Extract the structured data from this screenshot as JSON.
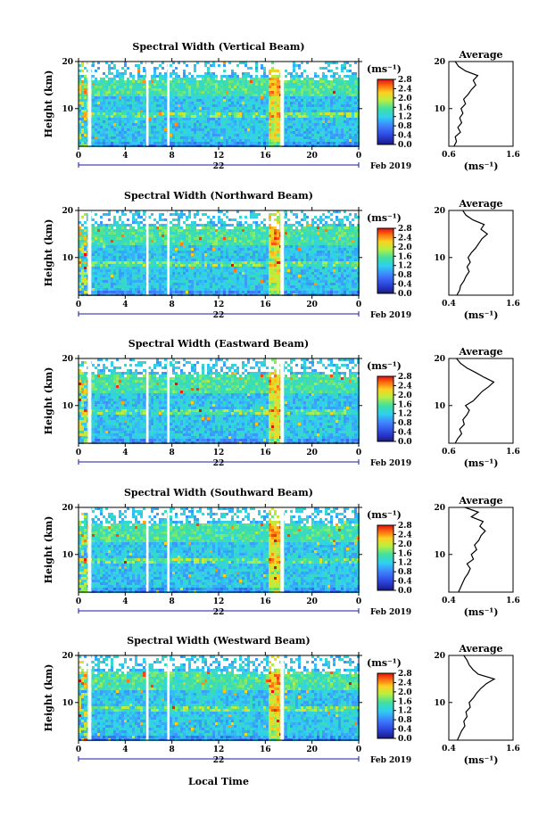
{
  "figure": {
    "xlabel": "Local Time",
    "height_axis_label": "Height (km)",
    "colorbar_unit": "(ms⁻¹)",
    "average_title": "Average",
    "average_xlabel": "(ms⁻¹)",
    "date_day": "22",
    "date_suffix": "Feb 2019"
  },
  "chart_data": [
    {
      "type": "heatmap",
      "title": "Spectral Width (Vertical Beam)",
      "x_ticks": [
        "0",
        "4",
        "8",
        "12",
        "16",
        "20",
        "0"
      ],
      "xlim": [
        0,
        24
      ],
      "y_ticks": [
        "20",
        "10"
      ],
      "ylim": [
        2,
        20
      ],
      "colorbar_ticks": [
        "2.8",
        "2.4",
        "2.0",
        "1.6",
        "1.2",
        "0.8",
        "0.4",
        "0.0"
      ],
      "colorbar_range": [
        0.0,
        2.8
      ],
      "data_gaps_hours": [
        [
          0.8,
          1.1
        ],
        [
          5.8,
          6.0
        ],
        [
          7.6,
          7.8
        ],
        [
          17.3,
          17.6
        ]
      ],
      "average": {
        "x_ticks": [
          "0.6",
          "1.6"
        ],
        "xlim": [
          0.6,
          1.6
        ],
        "y_ticks": [
          "20",
          "10"
        ],
        "height_km": [
          2.0,
          3,
          4,
          5,
          6,
          7,
          8,
          9,
          10,
          11,
          12,
          13,
          14,
          15,
          16,
          17,
          18,
          19,
          20
        ],
        "width_ms": [
          0.68,
          0.72,
          0.7,
          0.78,
          0.74,
          0.8,
          0.77,
          0.82,
          0.79,
          0.86,
          0.83,
          0.9,
          0.95,
          1.02,
          0.98,
          1.05,
          0.86,
          0.75,
          0.7
        ]
      }
    },
    {
      "type": "heatmap",
      "title": "Spectral Width (Northward Beam)",
      "x_ticks": [
        "0",
        "4",
        "8",
        "12",
        "16",
        "20",
        "0"
      ],
      "xlim": [
        0,
        24
      ],
      "y_ticks": [
        "20",
        "10"
      ],
      "ylim": [
        2,
        20
      ],
      "colorbar_ticks": [
        "2.8",
        "2.4",
        "2.0",
        "1.6",
        "1.2",
        "0.8",
        "0.4",
        "0.0"
      ],
      "colorbar_range": [
        0.0,
        2.8
      ],
      "data_gaps_hours": [
        [
          0.8,
          1.1
        ],
        [
          5.8,
          6.0
        ],
        [
          7.6,
          7.8
        ],
        [
          17.3,
          17.6
        ]
      ],
      "average": {
        "x_ticks": [
          "0.4",
          "1.6"
        ],
        "xlim": [
          0.4,
          1.6
        ],
        "y_ticks": [
          "20",
          "10"
        ],
        "height_km": [
          2.0,
          3,
          4,
          5,
          6,
          7,
          8,
          9,
          10,
          11,
          12,
          13,
          14,
          15,
          16,
          17,
          18,
          19,
          20
        ],
        "width_ms": [
          0.55,
          0.6,
          0.62,
          0.68,
          0.72,
          0.78,
          0.74,
          0.8,
          0.76,
          0.82,
          0.9,
          0.96,
          1.02,
          1.12,
          1.0,
          1.06,
          0.85,
          0.72,
          0.66
        ]
      }
    },
    {
      "type": "heatmap",
      "title": "Spectral Width (Eastward Beam)",
      "x_ticks": [
        "0",
        "4",
        "8",
        "12",
        "16",
        "20",
        "0"
      ],
      "xlim": [
        0,
        24
      ],
      "y_ticks": [
        "20",
        "10"
      ],
      "ylim": [
        2,
        20
      ],
      "colorbar_ticks": [
        "2.8",
        "2.4",
        "2.0",
        "1.6",
        "1.2",
        "0.8",
        "0.4",
        "0.0"
      ],
      "colorbar_range": [
        0.0,
        2.8
      ],
      "data_gaps_hours": [
        [
          0.8,
          1.1
        ],
        [
          5.8,
          6.0
        ],
        [
          7.6,
          7.8
        ],
        [
          17.3,
          17.6
        ]
      ],
      "average": {
        "x_ticks": [
          "0.6",
          "1.6"
        ],
        "xlim": [
          0.6,
          1.6
        ],
        "y_ticks": [
          "20",
          "10"
        ],
        "height_km": [
          2.0,
          3,
          4,
          5,
          6,
          7,
          8,
          9,
          10,
          11,
          12,
          13,
          14,
          15,
          16,
          17,
          18,
          19,
          20
        ],
        "width_ms": [
          0.7,
          0.74,
          0.8,
          0.77,
          0.84,
          0.82,
          0.88,
          0.92,
          0.86,
          0.98,
          1.05,
          1.12,
          1.22,
          1.3,
          1.15,
          1.02,
          0.88,
          0.78,
          0.72
        ]
      }
    },
    {
      "type": "heatmap",
      "title": "Spectral Width (Southward Beam)",
      "x_ticks": [
        "0",
        "4",
        "8",
        "12",
        "16",
        "20",
        "0"
      ],
      "xlim": [
        0,
        24
      ],
      "y_ticks": [
        "20",
        "10"
      ],
      "ylim": [
        2,
        20
      ],
      "colorbar_ticks": [
        "2.8",
        "2.4",
        "2.0",
        "1.6",
        "1.2",
        "0.8",
        "0.4",
        "0.0"
      ],
      "colorbar_range": [
        0.0,
        2.8
      ],
      "data_gaps_hours": [
        [
          0.8,
          1.1
        ],
        [
          5.8,
          6.0
        ],
        [
          7.6,
          7.8
        ],
        [
          17.3,
          17.6
        ]
      ],
      "average": {
        "x_ticks": [
          "0.4",
          "1.6"
        ],
        "xlim": [
          0.4,
          1.6
        ],
        "y_ticks": [
          "20",
          "10"
        ],
        "height_km": [
          2.0,
          3,
          4,
          5,
          6,
          7,
          8,
          9,
          10,
          11,
          12,
          13,
          14,
          15,
          16,
          17,
          18,
          19,
          20
        ],
        "width_ms": [
          0.58,
          0.62,
          0.66,
          0.7,
          0.76,
          0.8,
          0.74,
          0.86,
          0.82,
          0.92,
          0.88,
          0.96,
          1.0,
          1.08,
          0.98,
          1.04,
          0.82,
          0.95,
          0.7
        ]
      }
    },
    {
      "type": "heatmap",
      "title": "Spectral Width (Westward Beam)",
      "x_ticks": [
        "0",
        "4",
        "8",
        "12",
        "16",
        "20",
        "0"
      ],
      "xlim": [
        0,
        24
      ],
      "y_ticks": [
        "20",
        "10"
      ],
      "ylim": [
        2,
        20
      ],
      "colorbar_ticks": [
        "2.8",
        "2.4",
        "2.0",
        "1.6",
        "1.2",
        "0.8",
        "0.4",
        "0.0"
      ],
      "colorbar_range": [
        0.0,
        2.8
      ],
      "data_gaps_hours": [
        [
          0.8,
          1.1
        ],
        [
          5.8,
          6.0
        ],
        [
          7.6,
          7.8
        ],
        [
          17.3,
          17.6
        ]
      ],
      "average": {
        "x_ticks": [
          "0.4",
          "1.6"
        ],
        "xlim": [
          0.4,
          1.6
        ],
        "y_ticks": [
          "20",
          "10"
        ],
        "height_km": [
          2.0,
          3,
          4,
          5,
          6,
          7,
          8,
          9,
          10,
          11,
          12,
          13,
          14,
          15,
          16,
          17,
          18,
          19,
          20
        ],
        "width_ms": [
          0.56,
          0.6,
          0.64,
          0.7,
          0.68,
          0.74,
          0.72,
          0.8,
          0.78,
          0.86,
          0.92,
          1.0,
          1.1,
          1.25,
          0.95,
          0.85,
          0.78,
          0.74,
          0.68
        ]
      }
    }
  ]
}
